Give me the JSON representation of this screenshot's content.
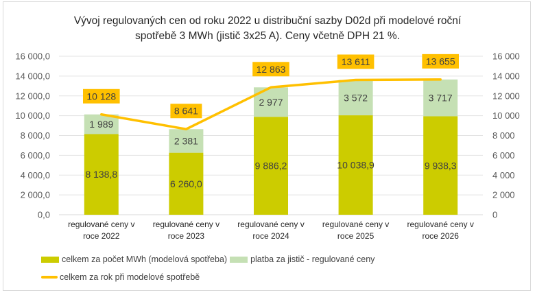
{
  "chart_data": {
    "type": "bar",
    "stacked": true,
    "title": "Vývoj regulovaných cen od roku 2022 u distribuční sazby D02d při modelové roční spotřebě 3 MWh (jistič 3x25 A). Ceny včetně DPH 21 %.",
    "title_lines": [
      "Vývoj regulovaných cen od roku 2022 u distribuční sazby D02d při modelové roční",
      "spotřebě 3 MWh (jistič 3x25 A). Ceny včetně DPH 21 %."
    ],
    "categories": [
      [
        "regulované ceny v",
        "roce 2022"
      ],
      [
        "regulované ceny v",
        "roce 2023"
      ],
      [
        "regulované ceny v",
        "roce 2024"
      ],
      [
        "regulované ceny v",
        "roce 2025"
      ],
      [
        "regulované ceny v",
        "roce 2026"
      ]
    ],
    "series": [
      {
        "name": "celkem za počet MWh (modelová spotřeba)",
        "type": "bar",
        "color": "#cccc00",
        "values": [
          8138.8,
          6260.0,
          9886.2,
          10038.9,
          9938.3
        ],
        "labels": [
          "8 138,8",
          "6 260,0",
          "9 886,2",
          "10 038,9",
          "9 938,3"
        ]
      },
      {
        "name": "platba za jistič - regulované ceny",
        "type": "bar",
        "color": "#c5e0b4",
        "values": [
          1989,
          2381,
          2977,
          3572,
          3717
        ],
        "labels": [
          "1 989",
          "2 381",
          "2 977",
          "3 572",
          "3 717"
        ]
      },
      {
        "name": "celkem za rok při modelové spotřebě",
        "type": "line",
        "axis": "secondary",
        "color": "#ffc000",
        "values": [
          10128,
          8641,
          12863,
          13611,
          13655
        ],
        "labels": [
          "10 128",
          "8 641",
          "12 863",
          "13 611",
          "13 655"
        ]
      }
    ],
    "ylim": [
      0,
      16000
    ],
    "y2lim": [
      0,
      16000
    ],
    "yticks": [
      "0,0",
      "2 000,0",
      "4 000,0",
      "6 000,0",
      "8 000,0",
      "10 000,0",
      "12 000,0",
      "14 000,0",
      "16 000,0"
    ],
    "y2ticks": [
      "0",
      "2 000",
      "4 000",
      "6 000",
      "8 000",
      "10 000",
      "12 000",
      "14 000",
      "16 000"
    ],
    "xlabel": "",
    "ylabel": "",
    "grid": true,
    "legend_position": "bottom"
  }
}
